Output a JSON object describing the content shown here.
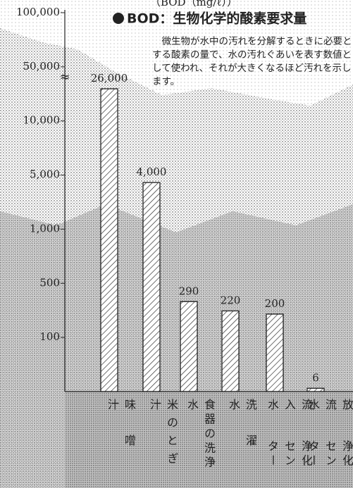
{
  "chart_data": {
    "type": "bar",
    "scale": "piecewise-log",
    "y_label": "（BOD（mg/ℓ））",
    "title": "BOD：生物化学的酸素要求量",
    "description": "微生物が水中の汚れを分解するときに必要とする酸素の量で、水の汚れぐあいを表す数値として使われ、それが大きくなるほど汚れを示します。",
    "axis_break_label": "≈",
    "categories": [
      [
        "味噌汁"
      ],
      [
        "米のとぎ汁"
      ],
      [
        "食器の洗浄水"
      ],
      [
        "洗濯水"
      ],
      [
        "流入水",
        "浄化センター"
      ],
      [
        "放流水",
        "浄化センター"
      ]
    ],
    "values": [
      26000,
      4000,
      290,
      220,
      200,
      6
    ],
    "value_labels": [
      "26,000",
      "4,000",
      "290",
      "220",
      "200",
      "6"
    ],
    "ylim": [
      0,
      100000
    ],
    "yticks": [
      {
        "value": 100000,
        "label": "100,000"
      },
      {
        "value": 50000,
        "label": "50,000"
      },
      {
        "value": 10000,
        "label": "10,000"
      },
      {
        "value": 5000,
        "label": "5,000"
      },
      {
        "value": 1000,
        "label": "1,000"
      },
      500,
      100
    ],
    "color": "#222222"
  }
}
